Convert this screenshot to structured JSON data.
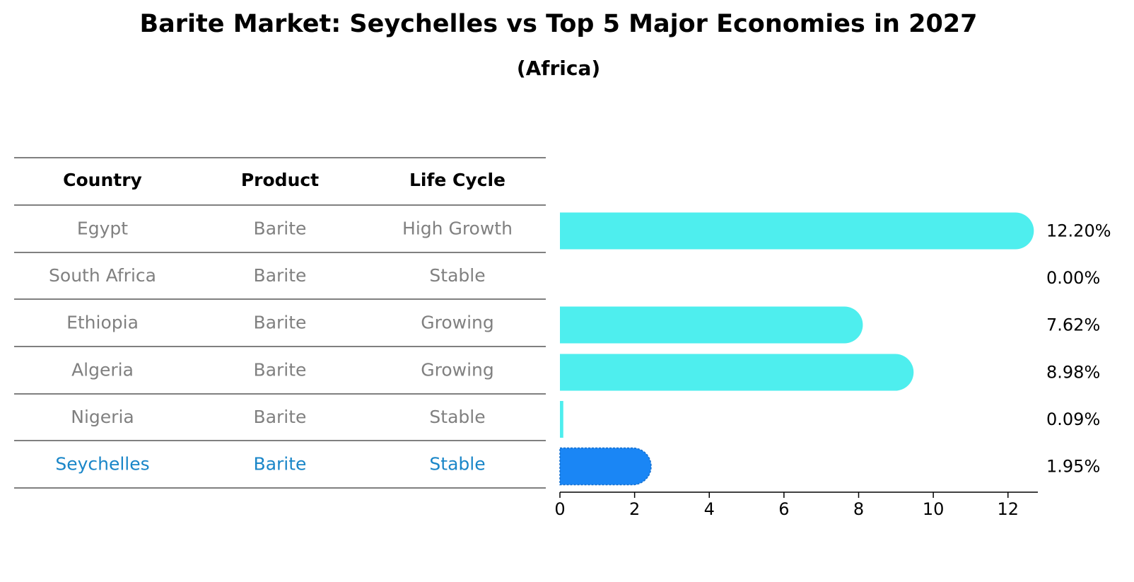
{
  "title": "Barite Market: Seychelles vs Top 5 Major Economies in 2027",
  "subtitle": "(Africa)",
  "table": {
    "headers": [
      "Country",
      "Product",
      "Life Cycle"
    ],
    "rows": [
      {
        "country": "Egypt",
        "product": "Barite",
        "life_cycle": "High Growth",
        "highlight": false
      },
      {
        "country": "South Africa",
        "product": "Barite",
        "life_cycle": "Stable",
        "highlight": false
      },
      {
        "country": "Ethiopia",
        "product": "Barite",
        "life_cycle": "Growing",
        "highlight": false
      },
      {
        "country": "Algeria",
        "product": "Barite",
        "life_cycle": "Growing",
        "highlight": false
      },
      {
        "country": "Nigeria",
        "product": "Barite",
        "life_cycle": "Stable",
        "highlight": false
      },
      {
        "country": "Seychelles",
        "product": "Barite",
        "life_cycle": "Stable",
        "highlight": true
      }
    ]
  },
  "chart_data": {
    "type": "bar",
    "orientation": "horizontal",
    "categories": [
      "Egypt",
      "South Africa",
      "Ethiopia",
      "Algeria",
      "Nigeria",
      "Seychelles"
    ],
    "values": [
      12.2,
      0.0,
      7.62,
      8.98,
      0.09,
      1.95
    ],
    "value_labels": [
      "12.20%",
      "0.00%",
      "7.62%",
      "8.98%",
      "0.09%",
      "1.95%"
    ],
    "xlim": [
      0,
      12.8
    ],
    "xticks": [
      "0",
      "2",
      "4",
      "6",
      "8",
      "10",
      "12"
    ],
    "grid": false,
    "colors": {
      "bar": "#4EEEEE",
      "highlight_bar": "#1A86F5",
      "text_normal": "#808080",
      "text_highlight": "#1A86C8",
      "header": "#000000"
    }
  }
}
